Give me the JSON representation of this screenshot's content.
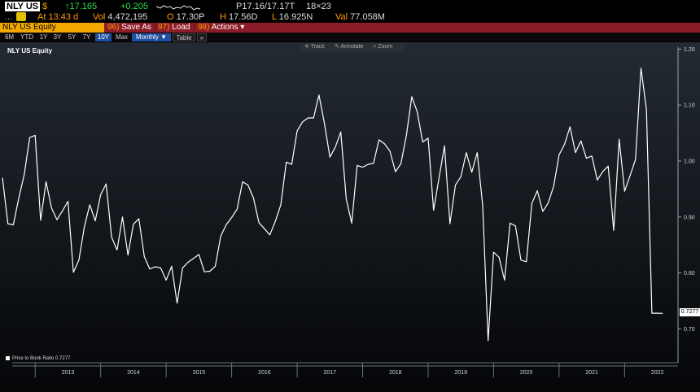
{
  "quote": {
    "ticker": "NLY US",
    "currency": "$",
    "last": "↑17.165",
    "change": "+0.205",
    "bidask": "P17.16/17.17T",
    "size": "18×23",
    "dots": "...",
    "at_label": "At",
    "time": "13:43 d",
    "vol_label": "Vol",
    "volume": "4,472,195",
    "open_label": "O",
    "open": "17.30P",
    "high_label": "H",
    "high": "17.56D",
    "low_label": "L",
    "low": "16.925N",
    "val_label": "Val",
    "value": "77.058M"
  },
  "menu": {
    "security": "NLY US Equity",
    "save_num": "96)",
    "save_label": "Save As",
    "load_num": "97)",
    "load_label": "Load",
    "actions_num": "98)",
    "actions_label": "Actions ▾"
  },
  "toolbar": {
    "ranges": [
      "6M",
      "YTD",
      "1Y",
      "3Y",
      "5Y",
      "7Y",
      "10Y",
      "Max"
    ],
    "active_range": "10Y",
    "period": "Monthly ▼",
    "table": "Table",
    "more": "»"
  },
  "chart_tools": {
    "track": "Track",
    "annotate": "Annotate",
    "zoom": "Zoom"
  },
  "chart_title": "NLY US Equity",
  "legend_label": "Price to Book Ratio  0.7277",
  "last_value_label": "0.7277",
  "colors": {
    "ticker_bg": "#ffffff",
    "up": "#2ee04a",
    "orange": "#ff9d00",
    "menu_bar": "#8c1c27",
    "security_bg": "#f2a800",
    "line": "#ffffff"
  },
  "chart_data": {
    "type": "line",
    "title": "NLY US Equity",
    "series": [
      {
        "name": "Price to Book Ratio",
        "x_start": "2012-07",
        "frequency": "monthly",
        "values": [
          0.97,
          0.888,
          0.886,
          0.934,
          0.976,
          1.042,
          1.046,
          0.894,
          0.963,
          0.916,
          0.895,
          0.911,
          0.928,
          0.801,
          0.823,
          0.882,
          0.922,
          0.893,
          0.94,
          0.959,
          0.864,
          0.841,
          0.9,
          0.832,
          0.887,
          0.897,
          0.829,
          0.807,
          0.811,
          0.809,
          0.787,
          0.812,
          0.746,
          0.809,
          0.819,
          0.826,
          0.833,
          0.802,
          0.803,
          0.812,
          0.866,
          0.886,
          0.899,
          0.914,
          0.963,
          0.957,
          0.934,
          0.89,
          0.879,
          0.868,
          0.892,
          0.922,
          0.998,
          0.994,
          1.054,
          1.07,
          1.077,
          1.077,
          1.118,
          1.067,
          1.007,
          1.025,
          1.052,
          0.932,
          0.889,
          0.992,
          0.989,
          0.994,
          0.996,
          1.038,
          1.031,
          1.018,
          0.981,
          0.995,
          1.045,
          1.115,
          1.088,
          1.034,
          1.041,
          0.912,
          0.97,
          1.027,
          0.888,
          0.957,
          0.972,
          1.015,
          0.98,
          1.015,
          0.921,
          0.679,
          0.837,
          0.828,
          0.787,
          0.889,
          0.884,
          0.823,
          0.82,
          0.924,
          0.947,
          0.91,
          0.925,
          0.955,
          1.011,
          1.03,
          1.061,
          1.015,
          1.036,
          1.005,
          1.009,
          0.966,
          0.981,
          0.991,
          0.876,
          1.039,
          0.946,
          0.974,
          1.003,
          1.166,
          1.092,
          0.728,
          0.728,
          0.7277
        ]
      }
    ],
    "xlabel": "",
    "ylabel": "",
    "x_ticks": [
      "2013",
      "2014",
      "2015",
      "2016",
      "2017",
      "2018",
      "2019",
      "2020",
      "2021",
      "2022"
    ],
    "y_ticks": [
      0.7,
      0.8,
      0.9,
      1.0,
      1.1,
      1.2
    ],
    "ylim": [
      0.65,
      1.21
    ],
    "xlim": [
      "2012-07",
      "2022-09"
    ],
    "grid": false,
    "legend": "bottom-left"
  }
}
